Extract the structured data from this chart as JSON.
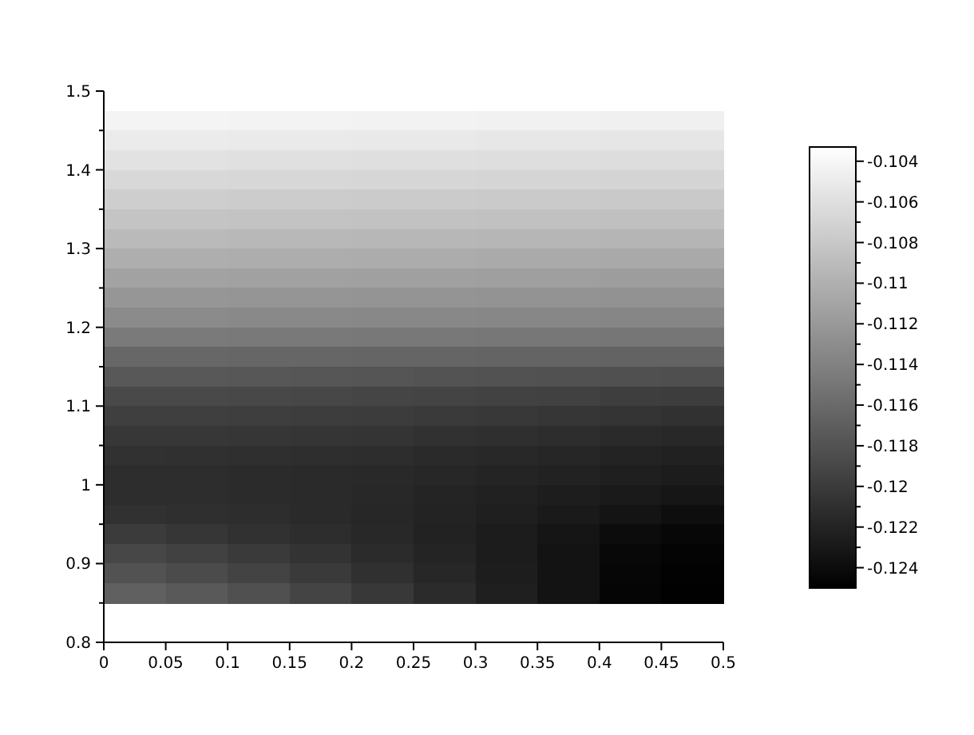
{
  "chart_data": {
    "type": "heatmap",
    "x": [
      0.025,
      0.075,
      0.125,
      0.175,
      0.225,
      0.275,
      0.325,
      0.375,
      0.425,
      0.475
    ],
    "y": [
      1.4625,
      1.4375,
      1.4125,
      1.3875,
      1.3625,
      1.3375,
      1.3125,
      1.2875,
      1.2625,
      1.2375,
      1.2125,
      1.1875,
      1.1625,
      1.1375,
      1.1125,
      1.0875,
      1.0625,
      1.0375,
      1.0125,
      0.9875,
      0.9625,
      0.9375,
      0.9125,
      0.8875,
      0.8625
    ],
    "xlim": [
      0,
      0.5
    ],
    "xticks": [
      0,
      0.05,
      0.1,
      0.15,
      0.2,
      0.25,
      0.3,
      0.35,
      0.4,
      0.45,
      0.5
    ],
    "ylim": [
      0.8,
      1.5
    ],
    "yticks": [
      0.8,
      {
        "value": 0.85,
        "label": null
      },
      0.9,
      {
        "value": 0.95,
        "label": null
      },
      1,
      {
        "value": 1.05,
        "label": null
      },
      1.1,
      {
        "value": 1.15,
        "label": null
      },
      1.2,
      {
        "value": 1.25,
        "label": null
      },
      1.3,
      {
        "value": 1.35,
        "label": null
      },
      1.4,
      {
        "value": 1.45,
        "label": null
      },
      1.5
    ],
    "clim": [
      -0.125,
      -0.1033
    ],
    "cticks": [
      -0.104,
      {
        "value": -0.105,
        "label": null
      },
      -0.106,
      {
        "value": -0.107,
        "label": null
      },
      -0.108,
      {
        "value": -0.109,
        "label": null
      },
      -0.11,
      {
        "value": -0.111,
        "label": null
      },
      -0.112,
      {
        "value": -0.113,
        "label": null
      },
      -0.114,
      {
        "value": -0.115,
        "label": null
      },
      -0.116,
      {
        "value": -0.117,
        "label": null
      },
      -0.118,
      {
        "value": -0.119,
        "label": null
      },
      -0.12,
      {
        "value": -0.121,
        "label": null
      },
      -0.122,
      {
        "value": -0.123,
        "label": null
      },
      -0.124
    ],
    "cells": [
      [
        -0.1042,
        -0.1042,
        -0.1043,
        -0.1043,
        -0.1044,
        -0.1044,
        -0.1045,
        -0.1045,
        -0.1046,
        -0.1046
      ],
      [
        -0.105,
        -0.105,
        -0.1051,
        -0.1051,
        -0.1052,
        -0.1052,
        -0.1053,
        -0.1053,
        -0.1054,
        -0.1054
      ],
      [
        -0.1058,
        -0.1058,
        -0.1059,
        -0.1059,
        -0.106,
        -0.106,
        -0.1061,
        -0.1061,
        -0.1062,
        -0.1062
      ],
      [
        -0.1066,
        -0.1066,
        -0.1067,
        -0.1067,
        -0.1068,
        -0.1068,
        -0.1069,
        -0.1069,
        -0.107,
        -0.107
      ],
      [
        -0.1075,
        -0.1075,
        -0.1076,
        -0.1076,
        -0.1077,
        -0.1077,
        -0.1078,
        -0.1078,
        -0.1079,
        -0.1079
      ],
      [
        -0.1083,
        -0.1083,
        -0.1084,
        -0.1084,
        -0.1085,
        -0.1085,
        -0.1086,
        -0.1086,
        -0.1087,
        -0.1087
      ],
      [
        -0.1092,
        -0.1092,
        -0.1093,
        -0.1093,
        -0.1094,
        -0.1094,
        -0.1095,
        -0.1095,
        -0.1096,
        -0.1096
      ],
      [
        -0.1102,
        -0.1102,
        -0.1103,
        -0.1103,
        -0.1104,
        -0.1104,
        -0.1105,
        -0.1105,
        -0.1106,
        -0.1106
      ],
      [
        -0.1112,
        -0.1112,
        -0.1113,
        -0.1113,
        -0.1114,
        -0.1114,
        -0.1115,
        -0.1115,
        -0.1116,
        -0.1116
      ],
      [
        -0.1122,
        -0.1122,
        -0.1123,
        -0.1123,
        -0.1124,
        -0.1124,
        -0.1125,
        -0.1125,
        -0.1126,
        -0.1126
      ],
      [
        -0.1132,
        -0.1132,
        -0.1133,
        -0.1133,
        -0.1134,
        -0.1134,
        -0.1135,
        -0.1135,
        -0.1136,
        -0.1136
      ],
      [
        -0.1146,
        -0.1146,
        -0.1147,
        -0.1147,
        -0.1148,
        -0.1148,
        -0.1149,
        -0.1149,
        -0.115,
        -0.115
      ],
      [
        -0.1162,
        -0.1162,
        -0.1163,
        -0.1163,
        -0.1164,
        -0.1164,
        -0.1165,
        -0.1165,
        -0.1166,
        -0.1166
      ],
      [
        -0.1175,
        -0.1175,
        -0.1176,
        -0.1177,
        -0.1178,
        -0.1179,
        -0.118,
        -0.1181,
        -0.1182,
        -0.1183
      ],
      [
        -0.1188,
        -0.1188,
        -0.1189,
        -0.119,
        -0.1191,
        -0.1192,
        -0.1194,
        -0.1195,
        -0.1197,
        -0.1198
      ],
      [
        -0.1196,
        -0.1196,
        -0.1197,
        -0.1198,
        -0.1199,
        -0.1201,
        -0.1202,
        -0.1204,
        -0.1206,
        -0.1208
      ],
      [
        -0.1203,
        -0.1203,
        -0.1204,
        -0.1205,
        -0.1206,
        -0.1208,
        -0.121,
        -0.1212,
        -0.1214,
        -0.1216
      ],
      [
        -0.1208,
        -0.1209,
        -0.121,
        -0.1211,
        -0.1212,
        -0.1214,
        -0.1216,
        -0.1218,
        -0.122,
        -0.1222
      ],
      [
        -0.1212,
        -0.1212,
        -0.1213,
        -0.1214,
        -0.1215,
        -0.1217,
        -0.1219,
        -0.1221,
        -0.1224,
        -0.1226
      ],
      [
        -0.1212,
        -0.1212,
        -0.1213,
        -0.1214,
        -0.1216,
        -0.1219,
        -0.1222,
        -0.1225,
        -0.1228,
        -0.1231
      ],
      [
        -0.1208,
        -0.121,
        -0.1212,
        -0.1214,
        -0.1217,
        -0.122,
        -0.1224,
        -0.1228,
        -0.1233,
        -0.1238
      ],
      [
        -0.12,
        -0.1204,
        -0.1208,
        -0.1212,
        -0.1216,
        -0.1221,
        -0.1226,
        -0.1232,
        -0.124,
        -0.1244
      ],
      [
        -0.119,
        -0.1195,
        -0.1201,
        -0.1207,
        -0.1213,
        -0.1219,
        -0.1226,
        -0.1234,
        -0.1243,
        -0.1247
      ],
      [
        -0.118,
        -0.1186,
        -0.1193,
        -0.1201,
        -0.1209,
        -0.1217,
        -0.1225,
        -0.1234,
        -0.1245,
        -0.1248
      ],
      [
        -0.1168,
        -0.1174,
        -0.1182,
        -0.1192,
        -0.1202,
        -0.1213,
        -0.1224,
        -0.1234,
        -0.1246,
        -0.1249
      ]
    ]
  }
}
